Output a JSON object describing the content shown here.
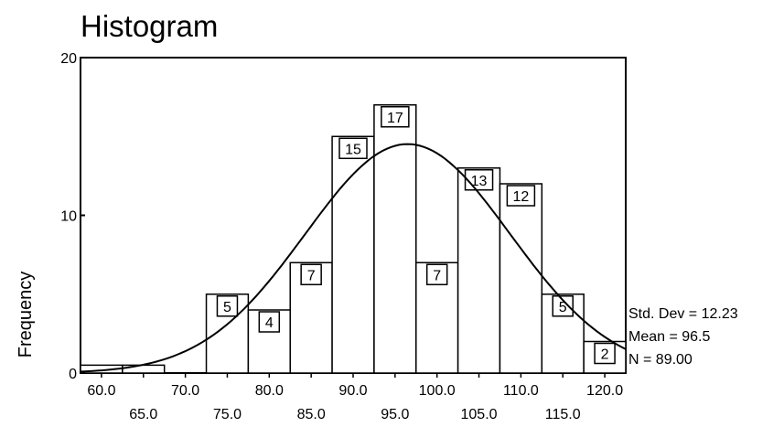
{
  "chart_data": {
    "type": "bar",
    "title": "Histogram",
    "xlabel": "",
    "ylabel": "Frequency",
    "ylim": [
      0,
      20
    ],
    "yticks": [
      "0",
      "10",
      "20"
    ],
    "xlim": [
      57.5,
      122.5
    ],
    "bin_width": 5,
    "x_ticks_upper": [
      "60.0",
      "70.0",
      "80.0",
      "90.0",
      "100.0",
      "110.0",
      "120.0"
    ],
    "x_ticks_lower": [
      "65.0",
      "75.0",
      "85.0",
      "95.0",
      "105.0",
      "115.0"
    ],
    "bins": [
      {
        "center": 60,
        "value": 0.5,
        "label": ""
      },
      {
        "center": 65,
        "value": 0.5,
        "label": ""
      },
      {
        "center": 75,
        "value": 5,
        "label": "5"
      },
      {
        "center": 80,
        "value": 4,
        "label": "4"
      },
      {
        "center": 85,
        "value": 7,
        "label": "7"
      },
      {
        "center": 90,
        "value": 15,
        "label": "15"
      },
      {
        "center": 95,
        "value": 17,
        "label": "17"
      },
      {
        "center": 100,
        "value": 7,
        "label": "7"
      },
      {
        "center": 105,
        "value": 13,
        "label": "13"
      },
      {
        "center": 110,
        "value": 12,
        "label": "12"
      },
      {
        "center": 115,
        "value": 5,
        "label": "5"
      },
      {
        "center": 120,
        "value": 2,
        "label": "2"
      }
    ],
    "normal_curve": {
      "mean": 96.5,
      "std": 12.23,
      "n": 89
    },
    "stats": [
      "Std. Dev = 12.23",
      "Mean = 96.5",
      "N = 89.00"
    ],
    "grid": false
  }
}
